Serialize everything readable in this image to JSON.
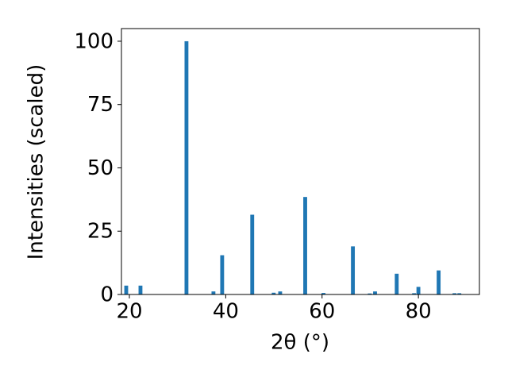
{
  "chart_data": {
    "type": "bar",
    "x_label": "2θ (°)",
    "y_label": "Intensities (scaled)",
    "x": [
      19.34,
      22.3,
      31.85,
      37.45,
      39.26,
      45.5,
      49.96,
      51.3,
      56.5,
      60.3,
      66.4,
      69.9,
      71.0,
      75.5,
      79.1,
      80.0,
      84.2,
      87.5,
      88.5
    ],
    "values": [
      3.5,
      3.5,
      100,
      1.2,
      15.5,
      31.5,
      0.7,
      1.2,
      38.5,
      0.6,
      19,
      0.4,
      1.2,
      8.2,
      0.5,
      3.0,
      9.5,
      0.5,
      0.5
    ],
    "color": "#1f77b4",
    "xlim": [
      18.35,
      92.67
    ],
    "xticks": [
      20,
      40,
      60,
      80
    ],
    "ylim": [
      0,
      105
    ],
    "yticks": [
      0,
      25,
      50,
      75,
      100
    ],
    "grid": false
  }
}
